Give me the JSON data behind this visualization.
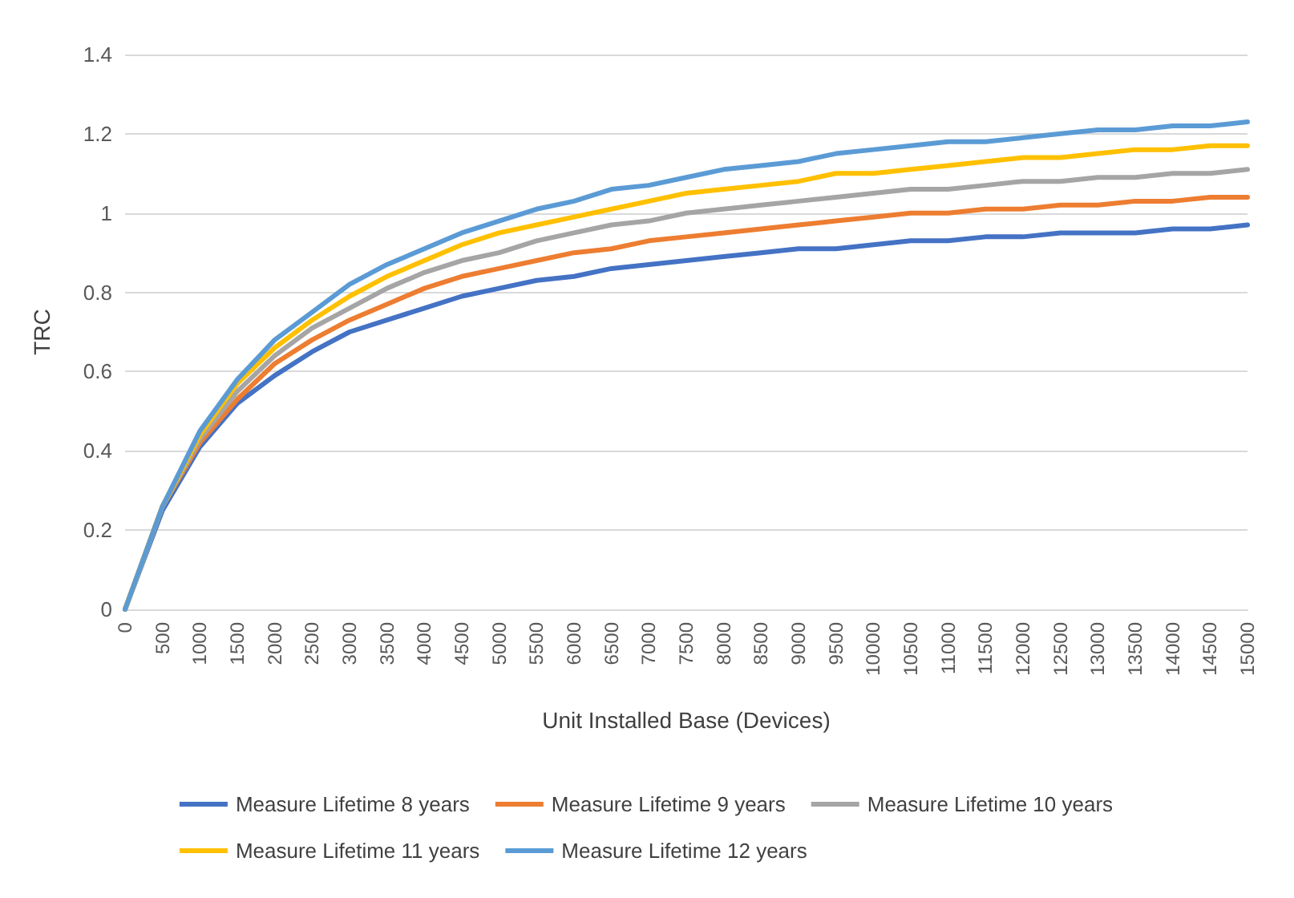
{
  "chart_data": {
    "type": "line",
    "xlabel": "Unit Installed Base (Devices)",
    "ylabel": "TRC",
    "categories": [
      "0",
      "500",
      "1000",
      "1500",
      "2000",
      "2500",
      "3000",
      "3500",
      "4000",
      "4500",
      "5000",
      "5500",
      "6000",
      "6500",
      "7000",
      "7500",
      "8000",
      "8500",
      "9000",
      "9500",
      "10000",
      "10500",
      "11000",
      "11500",
      "12000",
      "12500",
      "13000",
      "13500",
      "14000",
      "14500",
      "15000"
    ],
    "series": [
      {
        "name": "Measure Lifetime 8 years",
        "color": "#4472c4",
        "values": [
          0,
          0.25,
          0.41,
          0.52,
          0.59,
          0.65,
          0.7,
          0.73,
          0.76,
          0.79,
          0.81,
          0.83,
          0.84,
          0.86,
          0.87,
          0.88,
          0.89,
          0.9,
          0.91,
          0.91,
          0.92,
          0.93,
          0.93,
          0.94,
          0.94,
          0.95,
          0.95,
          0.95,
          0.96,
          0.96,
          0.97
        ]
      },
      {
        "name": "Measure Lifetime 9 years",
        "color": "#ed7d31",
        "values": [
          0,
          0.26,
          0.42,
          0.53,
          0.62,
          0.68,
          0.73,
          0.77,
          0.81,
          0.84,
          0.86,
          0.88,
          0.9,
          0.91,
          0.93,
          0.94,
          0.95,
          0.96,
          0.97,
          0.98,
          0.99,
          1.0,
          1.0,
          1.01,
          1.01,
          1.02,
          1.02,
          1.03,
          1.03,
          1.04,
          1.04
        ]
      },
      {
        "name": "Measure Lifetime 10 years",
        "color": "#a5a5a5",
        "values": [
          0,
          0.26,
          0.43,
          0.55,
          0.64,
          0.71,
          0.76,
          0.81,
          0.85,
          0.88,
          0.9,
          0.93,
          0.95,
          0.97,
          0.98,
          1.0,
          1.01,
          1.02,
          1.03,
          1.04,
          1.05,
          1.06,
          1.06,
          1.07,
          1.08,
          1.08,
          1.09,
          1.09,
          1.1,
          1.1,
          1.11
        ]
      },
      {
        "name": "Measure Lifetime 11 years",
        "color": "#ffc000",
        "values": [
          0,
          0.26,
          0.44,
          0.57,
          0.66,
          0.73,
          0.79,
          0.84,
          0.88,
          0.92,
          0.95,
          0.97,
          0.99,
          1.01,
          1.03,
          1.05,
          1.06,
          1.07,
          1.08,
          1.1,
          1.1,
          1.11,
          1.12,
          1.13,
          1.14,
          1.14,
          1.15,
          1.16,
          1.16,
          1.17,
          1.17
        ]
      },
      {
        "name": "Measure Lifetime 12 years",
        "color": "#5b9bd5",
        "values": [
          0,
          0.26,
          0.45,
          0.58,
          0.68,
          0.75,
          0.82,
          0.87,
          0.91,
          0.95,
          0.98,
          1.01,
          1.03,
          1.06,
          1.07,
          1.09,
          1.11,
          1.12,
          1.13,
          1.15,
          1.16,
          1.17,
          1.18,
          1.18,
          1.19,
          1.2,
          1.21,
          1.21,
          1.22,
          1.22,
          1.23
        ]
      }
    ],
    "ylim": [
      0,
      1.4
    ],
    "yticks": [
      0,
      0.2,
      0.4,
      0.6,
      0.8,
      1,
      1.2,
      1.4
    ],
    "grid": "y",
    "legend": "bottom",
    "marker": "none",
    "line_style": "solid"
  }
}
